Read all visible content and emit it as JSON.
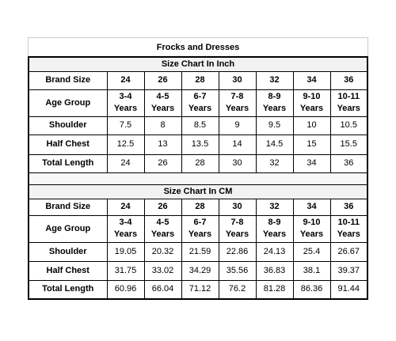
{
  "title": "Frocks and Dresses",
  "sections": [
    {
      "heading": "Size Chart In Inch",
      "rows": [
        {
          "label": "Brand Size",
          "values": [
            24,
            26,
            28,
            30,
            32,
            34,
            36
          ]
        },
        {
          "label": "Age Group",
          "values": [
            "3-4\nYears",
            "4-5\nYears",
            "6-7\nYears",
            "7-8\nYears",
            "8-9\nYears",
            "9-10\nYears",
            "10-11\nYears"
          ]
        },
        {
          "label": "Shoulder",
          "values": [
            7.5,
            8,
            8.5,
            9,
            9.5,
            10,
            10.5
          ]
        },
        {
          "label": "Half Chest",
          "values": [
            12.5,
            13,
            13.5,
            14,
            14.5,
            15,
            15.5
          ]
        },
        {
          "label": "Total Length",
          "values": [
            24,
            26,
            28,
            30,
            32,
            34,
            36
          ]
        }
      ]
    },
    {
      "heading": "Size Chart In CM",
      "rows": [
        {
          "label": "Brand Size",
          "values": [
            24,
            26,
            28,
            30,
            32,
            34,
            36
          ]
        },
        {
          "label": "Age Group",
          "values": [
            "3-4\nYears",
            "4-5\nYears",
            "6-7\nYears",
            "7-8\nYears",
            "8-9\nYears",
            "9-10\nYears",
            "10-11\nYears"
          ]
        },
        {
          "label": "Shoulder",
          "values": [
            19.05,
            20.32,
            21.59,
            22.86,
            24.13,
            25.4,
            26.67
          ]
        },
        {
          "label": "Half Chest",
          "values": [
            31.75,
            33.02,
            34.29,
            35.56,
            36.83,
            38.1,
            39.37
          ]
        },
        {
          "label": "Total Length",
          "values": [
            60.96,
            66.04,
            71.12,
            76.2,
            81.28,
            86.36,
            91.44
          ]
        }
      ]
    }
  ]
}
